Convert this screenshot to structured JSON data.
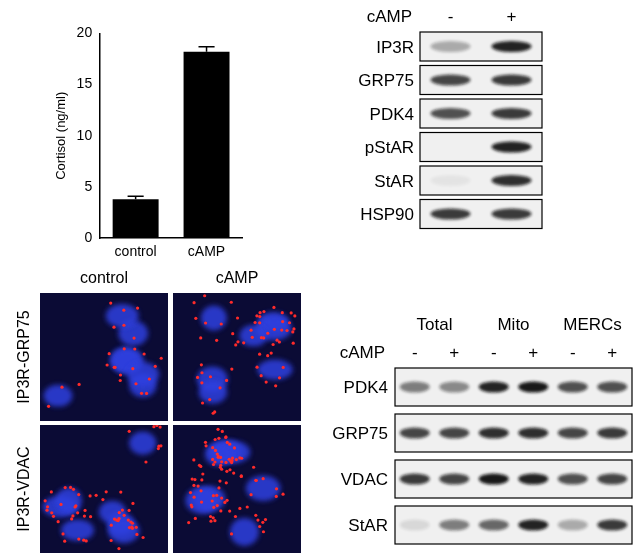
{
  "chart_data": {
    "type": "bar",
    "categories": [
      "control",
      "cAMP"
    ],
    "values": [
      3.8,
      18.2
    ],
    "errors": [
      0.3,
      0.5
    ],
    "color": "#000000",
    "y_label": "Cortisol (ng/ml)",
    "ylim": [
      0,
      20
    ],
    "yticks": [
      0,
      5,
      10,
      15,
      20
    ],
    "grid": false
  },
  "blot_top": {
    "treatment": "cAMP",
    "lanes": [
      "-",
      "+"
    ],
    "rows": [
      {
        "label": "IP3R",
        "intensities": [
          0.3,
          0.9
        ]
      },
      {
        "label": "GRP75",
        "intensities": [
          0.75,
          0.8
        ]
      },
      {
        "label": "PDK4",
        "intensities": [
          0.7,
          0.8
        ]
      },
      {
        "label": "pStAR",
        "intensities": [
          0,
          0.9
        ]
      },
      {
        "label": "StAR",
        "intensities": [
          0.05,
          0.85
        ]
      },
      {
        "label": "HSP90",
        "intensities": [
          0.8,
          0.8
        ]
      }
    ]
  },
  "micrographs": {
    "columns": [
      "control",
      "cAMP"
    ],
    "rows": [
      "IP3R-GRP75",
      "IP3R-VDAC"
    ],
    "puncta": [
      [
        25,
        60
      ],
      [
        60,
        90
      ]
    ]
  },
  "blot_fractions": {
    "treatment": "cAMP",
    "groups": [
      {
        "name": "Total",
        "lanes": [
          "-",
          "+"
        ]
      },
      {
        "name": "Mito",
        "lanes": [
          "-",
          "+"
        ]
      },
      {
        "name": "MERCs",
        "lanes": [
          "-",
          "+"
        ]
      }
    ],
    "rows": [
      {
        "label": "PDK4",
        "intensities": [
          0.5,
          0.45,
          0.9,
          0.95,
          0.7,
          0.7
        ]
      },
      {
        "label": "GRP75",
        "intensities": [
          0.75,
          0.75,
          0.85,
          0.85,
          0.75,
          0.8
        ]
      },
      {
        "label": "VDAC",
        "intensities": [
          0.8,
          0.75,
          0.95,
          0.9,
          0.7,
          0.75
        ]
      },
      {
        "label": "StAR",
        "intensities": [
          0.1,
          0.5,
          0.6,
          0.9,
          0.3,
          0.8
        ]
      }
    ]
  }
}
